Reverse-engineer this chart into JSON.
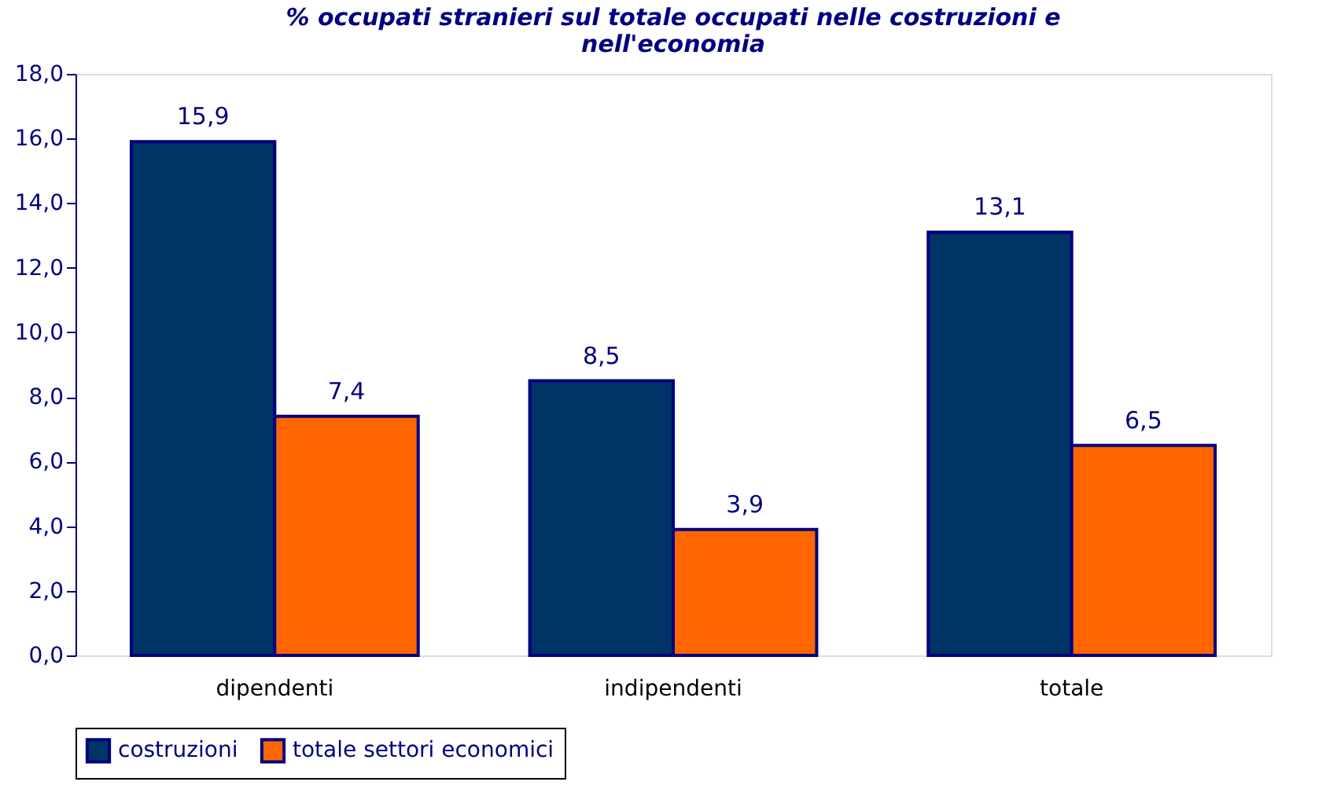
{
  "chart_data": {
    "type": "bar",
    "title": "% occupati stranieri sul totale occupati nelle costruzioni e\nnell'economia",
    "categories": [
      "dipendenti",
      "indipendenti",
      "totale"
    ],
    "series": [
      {
        "name": "costruzioni",
        "color": "#003366",
        "values": [
          15.9,
          8.5,
          13.1
        ],
        "value_labels": [
          "15,9",
          "8,5",
          "13,1"
        ]
      },
      {
        "name": "totale settori economici",
        "color": "#ff6600",
        "values": [
          7.4,
          3.9,
          6.5
        ],
        "value_labels": [
          "7,4",
          "3,9",
          "6,5"
        ]
      }
    ],
    "ylim": [
      0,
      18
    ],
    "yticks": [
      {
        "value": 0,
        "label": "0,0"
      },
      {
        "value": 2,
        "label": "2,0"
      },
      {
        "value": 4,
        "label": "4,0"
      },
      {
        "value": 6,
        "label": "6,0"
      },
      {
        "value": 8,
        "label": "8,0"
      },
      {
        "value": 10,
        "label": "10,0"
      },
      {
        "value": 12,
        "label": "12,0"
      },
      {
        "value": 14,
        "label": "14,0"
      },
      {
        "value": 16,
        "label": "16,0"
      },
      {
        "value": 18,
        "label": "18,0"
      }
    ],
    "grid": false,
    "legend": "bottom"
  }
}
